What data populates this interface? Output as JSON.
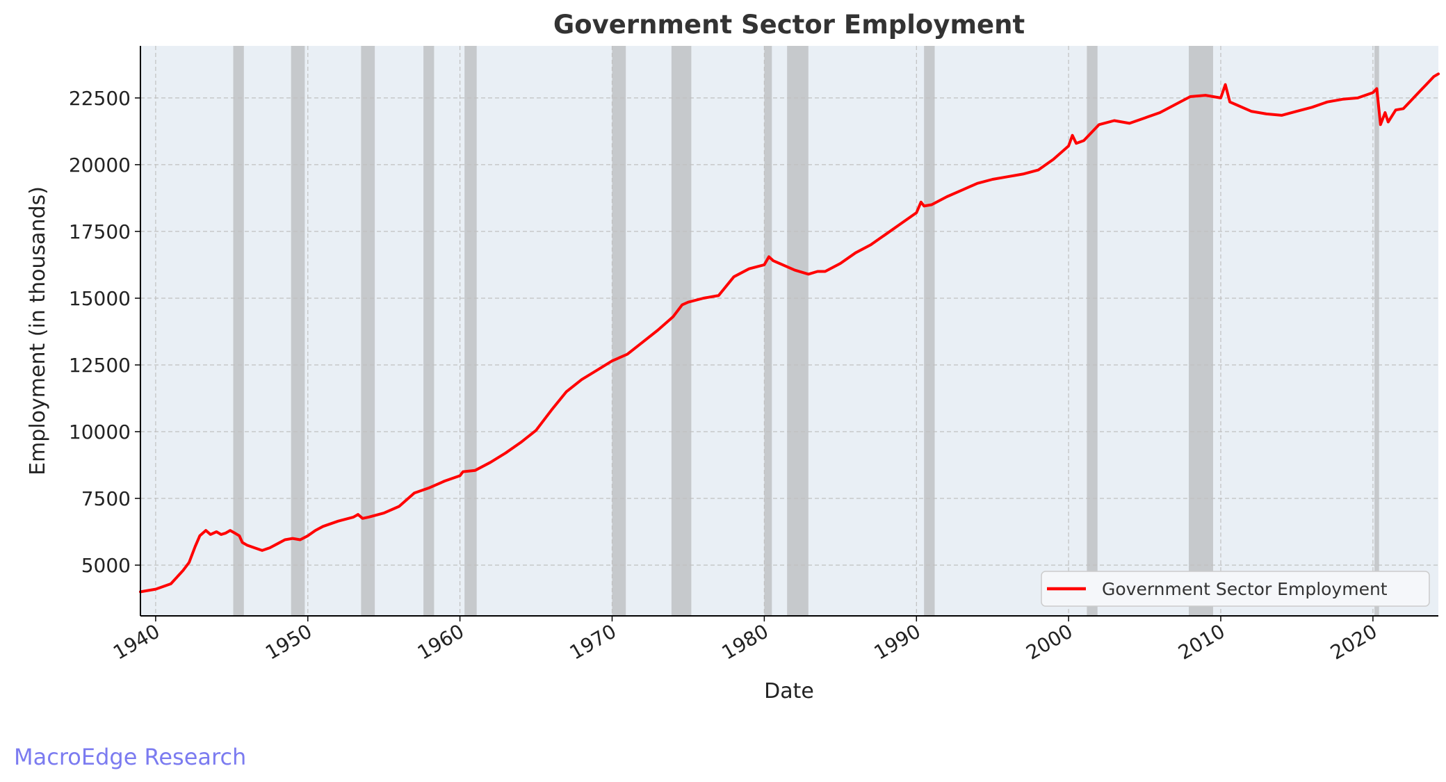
{
  "chart_data": {
    "type": "line",
    "title": "Government Sector Employment",
    "xlabel": "Date",
    "ylabel": "Employment (in thousands)",
    "xlim": [
      1939.0,
      2024.3
    ],
    "ylim": [
      3100,
      24450
    ],
    "x_ticks": [
      1940,
      1950,
      1960,
      1970,
      1980,
      1990,
      2000,
      2010,
      2020
    ],
    "y_ticks": [
      5000,
      7500,
      10000,
      12500,
      15000,
      17500,
      20000,
      22500
    ],
    "grid": true,
    "legend_position": "lower-right",
    "colors": {
      "plot_background": "#e9eff5",
      "line": "#ff0000",
      "recession_band": "#a9a9a9",
      "title": "#333333",
      "axis_text": "#222222",
      "watermark": "#7b7bf0"
    },
    "recessions": [
      {
        "start": 1945.1,
        "end": 1945.8
      },
      {
        "start": 1948.9,
        "end": 1949.8
      },
      {
        "start": 1953.5,
        "end": 1954.4
      },
      {
        "start": 1957.6,
        "end": 1958.3
      },
      {
        "start": 1960.3,
        "end": 1961.1
      },
      {
        "start": 1970.0,
        "end": 1970.9
      },
      {
        "start": 1973.9,
        "end": 1975.2
      },
      {
        "start": 1980.0,
        "end": 1980.5
      },
      {
        "start": 1981.5,
        "end": 1982.9
      },
      {
        "start": 1990.5,
        "end": 1991.2
      },
      {
        "start": 2001.2,
        "end": 2001.9
      },
      {
        "start": 2007.9,
        "end": 2009.5
      },
      {
        "start": 2020.1,
        "end": 2020.4
      }
    ],
    "series": [
      {
        "name": "Government Sector Employment",
        "x": [
          1939.0,
          1940.0,
          1941.0,
          1941.8,
          1942.2,
          1942.6,
          1942.9,
          1943.3,
          1943.6,
          1944.0,
          1944.3,
          1944.6,
          1944.9,
          1945.2,
          1945.5,
          1945.7,
          1946.0,
          1946.5,
          1947.0,
          1947.5,
          1948.0,
          1948.5,
          1949.0,
          1949.5,
          1950.0,
          1950.5,
          1951.0,
          1952.0,
          1953.0,
          1953.3,
          1953.6,
          1954.0,
          1955.0,
          1956.0,
          1957.0,
          1958.0,
          1959.0,
          1960.0,
          1960.2,
          1961.0,
          1962.0,
          1963.0,
          1964.0,
          1965.0,
          1966.0,
          1967.0,
          1968.0,
          1969.0,
          1970.0,
          1971.0,
          1972.0,
          1973.0,
          1974.0,
          1974.6,
          1975.0,
          1976.0,
          1977.0,
          1978.0,
          1979.0,
          1980.0,
          1980.3,
          1980.6,
          1981.0,
          1982.0,
          1982.9,
          1983.5,
          1984.0,
          1985.0,
          1986.0,
          1987.0,
          1988.0,
          1989.0,
          1990.0,
          1990.3,
          1990.5,
          1991.0,
          1992.0,
          1993.0,
          1994.0,
          1995.0,
          1996.0,
          1997.0,
          1998.0,
          1999.0,
          2000.0,
          2000.25,
          2000.5,
          2001.0,
          2002.0,
          2003.0,
          2004.0,
          2005.0,
          2006.0,
          2007.0,
          2008.0,
          2009.0,
          2010.0,
          2010.3,
          2010.6,
          2011.0,
          2012.0,
          2013.0,
          2014.0,
          2015.0,
          2016.0,
          2017.0,
          2018.0,
          2019.0,
          2020.0,
          2020.25,
          2020.5,
          2020.8,
          2021.0,
          2021.5,
          2022.0,
          2022.5,
          2023.0,
          2023.5,
          2024.0,
          2024.3
        ],
        "y": [
          4000,
          4100,
          4300,
          4800,
          5100,
          5700,
          6100,
          6300,
          6150,
          6250,
          6150,
          6200,
          6300,
          6200,
          6100,
          5850,
          5750,
          5650,
          5550,
          5650,
          5800,
          5950,
          6000,
          5950,
          6100,
          6300,
          6450,
          6650,
          6800,
          6900,
          6750,
          6800,
          6950,
          7200,
          7700,
          7900,
          8150,
          8350,
          8500,
          8550,
          8850,
          9200,
          9600,
          10050,
          10800,
          11500,
          11950,
          12300,
          12650,
          12900,
          13350,
          13800,
          14300,
          14750,
          14850,
          15000,
          15100,
          15800,
          16100,
          16250,
          16550,
          16400,
          16300,
          16050,
          15900,
          16000,
          16000,
          16300,
          16700,
          17000,
          17400,
          17800,
          18200,
          18600,
          18450,
          18500,
          18800,
          19050,
          19300,
          19450,
          19550,
          19650,
          19800,
          20200,
          20700,
          21100,
          20800,
          20900,
          21500,
          21650,
          21550,
          21750,
          21950,
          22250,
          22550,
          22600,
          22500,
          23000,
          22350,
          22250,
          22000,
          21900,
          21850,
          22000,
          22150,
          22350,
          22450,
          22500,
          22700,
          22850,
          21500,
          21950,
          21600,
          22050,
          22100,
          22400,
          22700,
          23000,
          23300,
          23400
        ]
      }
    ]
  },
  "watermark": "MacroEdge Research"
}
